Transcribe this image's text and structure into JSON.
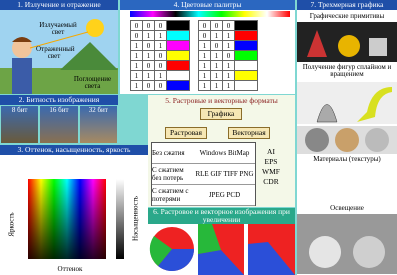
{
  "emission": {
    "title": "1. Излучение и отражение",
    "emitted": "Излучаемый свет",
    "reflected": "Отраженный свет",
    "absorbed": "Поглощение света"
  },
  "bit_depth": {
    "title": "2. Битность изображения",
    "labels": [
      "8 бит",
      "16 бит",
      "32 бит"
    ]
  },
  "hsb": {
    "title": "3. Оттенок, насыщенность, яркость",
    "brightness": "Яркость",
    "saturation": "Насыщенность",
    "hue": "Оттенок"
  },
  "palettes": {
    "title": "4. Цветовые палитры",
    "rows": [
      {
        "bits_a": [
          0,
          0,
          0
        ],
        "color_a": "#000000",
        "bits_b": [
          0,
          0,
          0
        ],
        "color_b": "#000000"
      },
      {
        "bits_a": [
          0,
          1,
          1
        ],
        "color_a": "#00ffff",
        "bits_b": [
          0,
          1,
          1
        ],
        "color_b": "#ff0000"
      },
      {
        "bits_a": [
          1,
          0,
          1
        ],
        "color_a": "#ff00ff",
        "bits_b": [
          1,
          0,
          1
        ],
        "color_b": "#0000ff"
      },
      {
        "bits_a": [
          1,
          1,
          0
        ],
        "color_a": "#ffff00",
        "bits_b": [
          1,
          1,
          0
        ],
        "color_b": "#00ff00"
      },
      {
        "bits_a": [
          1,
          0,
          0
        ],
        "color_a": "#ff0000",
        "bits_b": [
          1,
          1,
          1
        ],
        "color_b": "#ffffff"
      },
      {
        "bits_a": [
          1,
          1,
          1
        ],
        "color_a": "#ffffff",
        "bits_b": [
          1,
          1,
          1
        ],
        "color_b": "#ffff00"
      },
      {
        "bits_a": [
          1,
          0,
          0
        ],
        "color_a": "#0000ff",
        "bits_b": [
          1,
          1,
          1
        ],
        "color_b": "#ffffff"
      }
    ]
  },
  "formats": {
    "title": "5. Растровые и векторные форматы",
    "root": "Графика",
    "raster": "Растровая",
    "vector": "Векторная",
    "groups": [
      {
        "name": "Без сжатия",
        "items": "Windows BitMap"
      },
      {
        "name": "С сжатием без потерь",
        "items": "RLE GIF TIFF PNG"
      },
      {
        "name": "С сжатием с потерями",
        "items": "JPEG PCD"
      }
    ],
    "vector_formats": [
      "AI",
      "EPS",
      "WMF",
      "CDR"
    ]
  },
  "zoom": {
    "title": "6. Растровое и векторное изображения при увеличении"
  },
  "graphics3d": {
    "title": "7. Трехмерная графика",
    "primitives": "Графические примитивы",
    "splines": "Получение фигур сплайном и вращением",
    "materials": "Материалы (текстуры)",
    "lighting": "Освещение"
  }
}
